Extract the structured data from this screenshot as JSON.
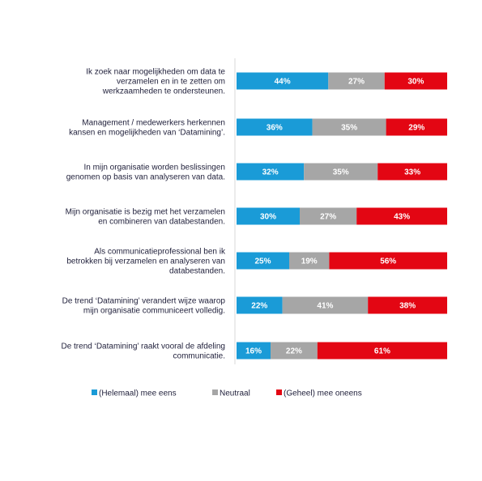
{
  "chart_data": {
    "type": "bar",
    "orientation": "horizontal",
    "stacked": true,
    "percent_stacked": true,
    "categories": [
      "Ik zoek naar mogelijkheden om data te verzamelen en in te zetten om werkzaamheden te ondersteunen.",
      "Management / medewerkers herkennen kansen en mogelijkheden van ‘Datamining’.",
      "In mijn organisatie worden beslissingen genomen op basis van analyseren van data.",
      "Mijn organisatie is bezig met het verzamelen en combineren van databestanden.",
      "Als communicatieprofessional ben ik betrokken bij verzamelen en analyseren van databestanden.",
      "De trend ‘Datamining’ verandert wijze waarop mijn organisatie communiceert volledig.",
      "De trend ‘Datamining’ raakt vooral de afdeling communicatie."
    ],
    "category_lines": [
      [
        "Ik zoek naar mogelijkheden om data te",
        "verzamelen en in te zetten om",
        "werkzaamheden te ondersteunen."
      ],
      [
        "Management / medewerkers herkennen",
        "kansen en mogelijkheden van ‘Datamining’."
      ],
      [
        "In mijn organisatie worden beslissingen",
        "genomen op basis van analyseren van data."
      ],
      [
        "Mijn organisatie is bezig met het verzamelen",
        "en combineren van databestanden."
      ],
      [
        "Als communicatieprofessional ben ik",
        "betrokken bij verzamelen en analyseren van",
        "databestanden."
      ],
      [
        "De trend ‘Datamining’ verandert wijze waarop",
        "mijn organisatie communiceert volledig."
      ],
      [
        "De trend ‘Datamining’ raakt vooral de afdeling",
        "communicatie."
      ]
    ],
    "series": [
      {
        "name": "(Helemaal) mee eens",
        "color": "#1a9bd7",
        "values": [
          44,
          36,
          32,
          30,
          25,
          22,
          16
        ]
      },
      {
        "name": "Neutraal",
        "color": "#a6a6a6",
        "values": [
          27,
          35,
          35,
          27,
          19,
          41,
          22
        ]
      },
      {
        "name": "(Geheel) mee oneens",
        "color": "#e30613",
        "values": [
          30,
          29,
          33,
          43,
          56,
          38,
          61
        ]
      }
    ],
    "value_suffix": "%",
    "legend_position": "bottom",
    "grid": false
  }
}
